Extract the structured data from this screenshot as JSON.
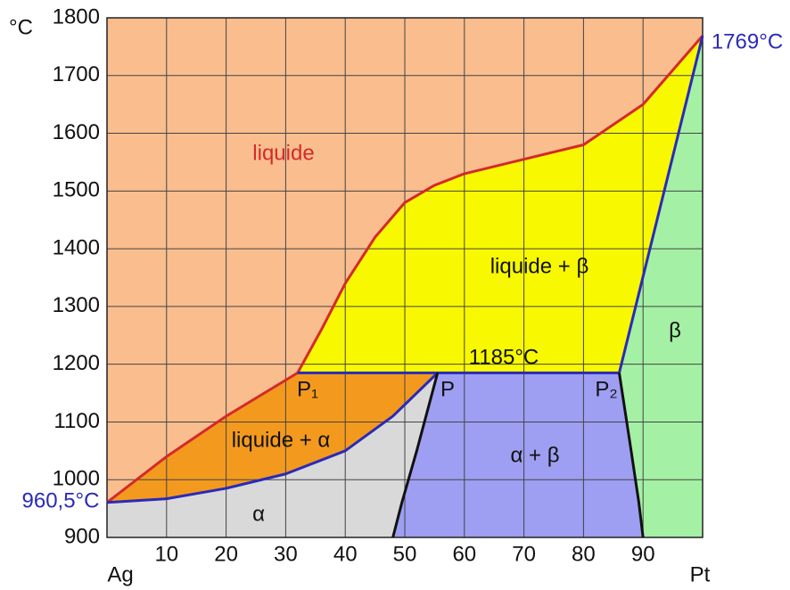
{
  "chart_data": {
    "type": "phase-diagram",
    "y_label": "°C",
    "xlim": [
      0,
      100
    ],
    "ylim": [
      900,
      1800
    ],
    "xticks": [
      {
        "value": 0,
        "label": "Ag"
      },
      10,
      20,
      30,
      40,
      50,
      60,
      70,
      80,
      90,
      {
        "value": 100,
        "label": "Pt"
      }
    ],
    "yticks": [
      900,
      1000,
      1100,
      1200,
      1300,
      1400,
      1500,
      1600,
      1700,
      1800
    ],
    "grid": true,
    "curves": [
      {
        "color": "#d42a2a",
        "x": [
          0,
          10,
          20,
          32
        ],
        "y": [
          960.5,
          1040,
          1110,
          1185
        ]
      },
      {
        "color": "#d42a2a",
        "x": [
          32,
          36,
          40,
          45,
          50,
          55,
          60,
          70,
          80,
          90,
          100
        ],
        "y": [
          1185,
          1260,
          1340,
          1420,
          1480,
          1510,
          1530,
          1555,
          1580,
          1650,
          1769
        ]
      },
      {
        "color": "#2a2ab8",
        "x": [
          0,
          10,
          20,
          30,
          40,
          48,
          55.5
        ],
        "y": [
          960.5,
          967,
          985,
          1010,
          1050,
          1110,
          1185
        ]
      },
      {
        "color": "#2a2ab8",
        "x": [
          32,
          86
        ],
        "y": [
          1185,
          1185
        ]
      },
      {
        "color": "#2a2ab8",
        "x": [
          86,
          100
        ],
        "y": [
          1185,
          1769
        ]
      },
      {
        "color": "#111111",
        "x": [
          55.5,
          52,
          49.5,
          48
        ],
        "y": [
          1185,
          1050,
          960,
          900
        ]
      },
      {
        "color": "#111111",
        "x": [
          86,
          88,
          89.3,
          90
        ],
        "y": [
          1185,
          1050,
          960,
          900
        ]
      }
    ],
    "regions": [
      {
        "label": "liquide",
        "fill": "#f9bd8e",
        "label_color": "#d42a2a"
      },
      {
        "label": "liquide + β",
        "fill": "#f8f800",
        "label_color": "#111111"
      },
      {
        "label": "liquide + α",
        "fill": "#f39a1e",
        "label_color": "#111111"
      },
      {
        "label": "α",
        "fill": "#d9d9d9",
        "label_color": "#111111"
      },
      {
        "label": "α + β",
        "fill": "#9e9ef2",
        "label_color": "#111111"
      },
      {
        "label": "β",
        "fill": "#a4f0a4",
        "label_color": "#111111"
      }
    ],
    "annotations": [
      "P₁",
      "P",
      "P₂",
      "1185°C",
      "960,5°C",
      "1769°C"
    ]
  }
}
